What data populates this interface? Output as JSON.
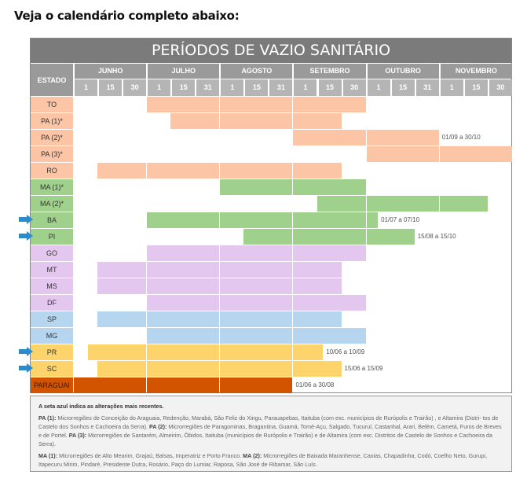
{
  "intro": "Veja o calendário completo abaixo:",
  "chart_data": {
    "type": "gantt",
    "title": "PERÍODOS DE VAZIO SANITÁRIO",
    "row_header": "ESTADO",
    "months": [
      "JUNHO",
      "JULHO",
      "AGOSTO",
      "SETEMBRO",
      "OUTUBRO",
      "NOVEMBRO"
    ],
    "month_ticks": [
      [
        "1",
        "15",
        "30"
      ],
      [
        "1",
        "15",
        "31"
      ],
      [
        "1",
        "15",
        "31"
      ],
      [
        "1",
        "15",
        "30"
      ],
      [
        "1",
        "15",
        "31"
      ],
      [
        "1",
        "15",
        "30"
      ]
    ],
    "colors": {
      "tocantins_para_rondonia": "#fbc5a6",
      "nordeste": "#9fd18c",
      "centro_oeste": "#e3c7ef",
      "sudeste": "#b6d5ee",
      "sul": "#fdd46b",
      "paraguai": "#d35400",
      "arrow": "#2b8bcb"
    },
    "rows": [
      {
        "state": "TO",
        "group": "tocantins_para_rondonia",
        "from": "JULHO 1",
        "to": "SETEMBRO 30"
      },
      {
        "state": "PA (1)*",
        "group": "tocantins_para_rondonia",
        "from": "JULHO 15",
        "to": "SETEMBRO 15"
      },
      {
        "state": "PA (2)*",
        "group": "tocantins_para_rondonia",
        "from": "SETEMBRO 1",
        "to": "OUTUBRO 31",
        "label": "01/09 a 30/10"
      },
      {
        "state": "PA (3)*",
        "group": "tocantins_para_rondonia",
        "from": "OUTUBRO 1",
        "to": "NOVEMBRO 30"
      },
      {
        "state": "RO",
        "group": "tocantins_para_rondonia",
        "from": "JUNHO 15",
        "to": "SETEMBRO 15"
      },
      {
        "state": "MA (1)*",
        "group": "nordeste",
        "from": "AGOSTO 1",
        "to": "SETEMBRO 30"
      },
      {
        "state": "MA (2)*",
        "group": "nordeste",
        "from": "SETEMBRO 15",
        "to": "NOVEMBRO 15"
      },
      {
        "state": "BA",
        "group": "nordeste",
        "from": "JULHO 1",
        "to": "OUTUBRO 1",
        "to_fraction": 0.5,
        "label": "01/07 a 07/10",
        "recent_change": true
      },
      {
        "state": "PI",
        "group": "nordeste",
        "from": "AGOSTO 15",
        "to": "OUTUBRO 15",
        "label": "15/08 a 15/10",
        "recent_change": true
      },
      {
        "state": "GO",
        "group": "centro_oeste",
        "from": "JULHO 1",
        "to": "SETEMBRO 30"
      },
      {
        "state": "MT",
        "group": "centro_oeste",
        "from": "JUNHO 15",
        "to": "SETEMBRO 15"
      },
      {
        "state": "MS",
        "group": "centro_oeste",
        "from": "JUNHO 15",
        "to": "SETEMBRO 15"
      },
      {
        "state": "DF",
        "group": "centro_oeste",
        "from": "JULHO 1",
        "to": "SETEMBRO 30"
      },
      {
        "state": "SP",
        "group": "sudeste",
        "from": "JUNHO 15",
        "to": "SETEMBRO 15"
      },
      {
        "state": "MG",
        "group": "sudeste",
        "from": "JULHO 1",
        "to": "SETEMBRO 30"
      },
      {
        "state": "PR",
        "group": "sul",
        "from": "JUNHO 1",
        "from_fraction": 0.6,
        "to": "SETEMBRO 15",
        "to_fraction": 0.25,
        "label": "10/06 a 10/09",
        "recent_change": true
      },
      {
        "state": "SC",
        "group": "sul",
        "from": "JUNHO 15",
        "to": "SETEMBRO 15",
        "label": "15/06 a 15/09",
        "recent_change": true
      },
      {
        "state": "PARAGUAI",
        "group": "paraguai",
        "from": "JUNHO 1",
        "to": "AGOSTO 31",
        "label": "01/06 a 30/08"
      }
    ]
  },
  "notes": {
    "heading": "A seta azul indica as alterações mais recentes.",
    "paragraphs": [
      [
        {
          "b": "PA (1):",
          "t": " Microrregiões de Conceição do Araguaia, Redenção, Marabá, São Feliz do Xingu, Parauapebas, Itaituba (com exc. municípios de Rurópolis e Trairão) , e Altamira (Distri- tos  de Castelo dos Sonhos e Cachoeira da Serra). "
        },
        {
          "b": "PA (2):",
          "t": " Microrregiões de Paragominas, Bragantina, Guamá, Tomé-Açu, Salgado, Tucuruí, Castanhal, Arari, Belém, Cametá, Furos de Breves e de Portel. "
        },
        {
          "b": "PA (3):",
          "t": " Microrregiões de Santarém, Almeirim, Óbidos, Itaituba (municípios de Rurópolis e Trairão) e de Altamira (com exc. Distritos de Castelo de Sonhos e Cachoeira da Serra)."
        }
      ],
      [
        {
          "b": "MA (1):",
          "t": " Microrregiões  de Alto Mearim, Grajaú, Balsas, Imperatriz e Porto Franco. "
        },
        {
          "b": "MA (2):",
          "t": " Microrregiões de Baixada Maranhense, Caxias, Chapadinha, Codó, Coelho Neto, Gurupi, Itapecuru Mirim, Pindaré, Presidente Dutra, Rosário, Paço do Lumiar, Raposa, São José de Ribamar, São Luís."
        }
      ]
    ]
  }
}
